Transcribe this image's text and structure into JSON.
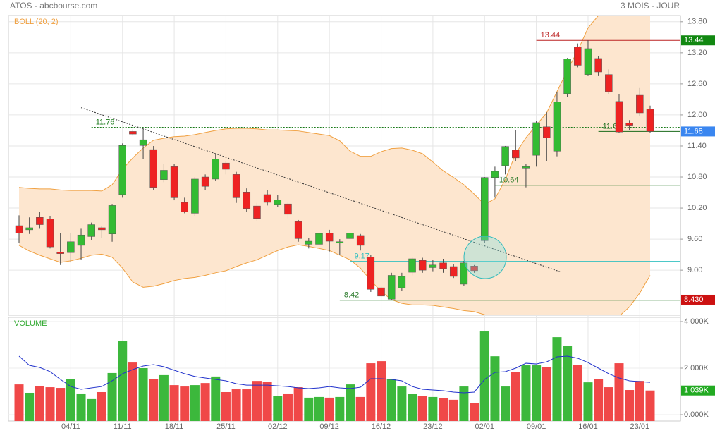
{
  "header": {
    "title": "ATOS - abcbourse.com",
    "period": "3 MOIS - JOUR"
  },
  "chart_data": [
    {
      "type": "candlestick",
      "categories": [
        null,
        null,
        null,
        null,
        null,
        "04/11",
        null,
        null,
        null,
        null,
        "11/11",
        null,
        null,
        null,
        null,
        "18/11",
        null,
        null,
        null,
        null,
        "25/11",
        null,
        null,
        null,
        null,
        "02/12",
        null,
        null,
        null,
        null,
        "09/12",
        null,
        null,
        null,
        null,
        "16/12",
        null,
        null,
        null,
        null,
        "23/12",
        null,
        null,
        null,
        null,
        "02/01",
        null,
        null,
        null,
        null,
        "09/01",
        null,
        null,
        null,
        null,
        "16/01",
        null,
        null,
        null,
        null,
        "23/01",
        null
      ],
      "open": [
        9.86,
        9.78,
        10.02,
        9.99,
        9.35,
        9.34,
        9.48,
        9.65,
        9.82,
        9.7,
        10.46,
        11.68,
        11.41,
        11.33,
        10.75,
        11.0,
        10.31,
        10.1,
        10.8,
        10.76,
        11.07,
        10.85,
        10.51,
        10.24,
        10.46,
        10.27,
        10.28,
        9.94,
        9.5,
        9.5,
        9.72,
        9.54,
        9.61,
        9.67,
        9.25,
        8.66,
        8.44,
        8.66,
        8.96,
        9.19,
        9.05,
        9.14,
        9.07,
        8.73,
        9.08,
        9.57,
        10.79,
        11.02,
        11.32,
        10.98,
        11.22,
        11.77,
        11.3,
        12.41,
        13.31,
        12.78,
        13.09,
        12.78,
        12.26,
        11.84,
        12.38,
        12.11
      ],
      "high": [
        10.06,
        10.02,
        10.12,
        10.05,
        9.72,
        9.72,
        9.8,
        9.92,
        9.86,
        10.28,
        11.45,
        11.72,
        11.72,
        11.4,
        11.05,
        11.05,
        10.4,
        10.8,
        10.85,
        11.25,
        11.1,
        10.9,
        10.58,
        10.3,
        10.55,
        10.45,
        10.32,
        9.97,
        9.62,
        9.78,
        9.78,
        9.6,
        9.88,
        9.7,
        9.3,
        8.7,
        8.95,
        8.95,
        9.25,
        9.24,
        9.2,
        9.22,
        9.12,
        9.18,
        9.1,
        10.8,
        11.0,
        11.4,
        11.7,
        11.05,
        11.88,
        12.05,
        12.45,
        13.1,
        13.38,
        13.44,
        13.13,
        12.88,
        12.4,
        11.9,
        12.52,
        12.18
      ],
      "low": [
        9.52,
        9.7,
        9.8,
        9.42,
        9.1,
        9.15,
        9.2,
        9.58,
        9.62,
        9.55,
        10.4,
        11.6,
        11.15,
        10.55,
        10.7,
        10.35,
        10.1,
        10.05,
        10.55,
        10.72,
        10.85,
        10.3,
        10.12,
        9.95,
        10.25,
        10.22,
        10.0,
        9.55,
        9.42,
        9.35,
        9.36,
        9.3,
        9.55,
        9.38,
        8.58,
        8.42,
        8.42,
        8.6,
        8.9,
        8.95,
        8.98,
        8.95,
        8.85,
        8.7,
        8.95,
        9.52,
        10.4,
        10.85,
        11.1,
        10.6,
        11.0,
        11.1,
        11.2,
        12.35,
        12.92,
        12.75,
        12.75,
        12.4,
        11.65,
        11.7,
        11.98,
        11.65
      ],
      "close": [
        9.72,
        9.82,
        9.88,
        9.45,
        9.32,
        9.55,
        9.68,
        9.88,
        9.78,
        10.25,
        11.41,
        11.63,
        11.52,
        10.6,
        10.93,
        10.4,
        10.13,
        10.76,
        10.62,
        11.15,
        10.95,
        10.4,
        10.19,
        10.0,
        10.31,
        10.36,
        10.08,
        9.61,
        9.56,
        9.71,
        9.56,
        9.55,
        9.72,
        9.48,
        8.63,
        8.5,
        8.9,
        8.88,
        9.22,
        9.0,
        9.1,
        9.03,
        8.88,
        9.14,
        8.99,
        10.79,
        10.91,
        11.39,
        11.17,
        11.0,
        11.85,
        11.56,
        12.25,
        13.08,
        12.96,
        13.28,
        12.83,
        12.45,
        11.67,
        11.8,
        12.04,
        11.68
      ],
      "up_color": "#33bb33",
      "down_color": "#ee2222",
      "ylim": [
        8.13,
        13.92
      ],
      "yticks": [
        {
          "value": 9.0,
          "label": "9.00"
        },
        {
          "value": 9.6,
          "label": "9.60"
        },
        {
          "value": 10.2,
          "label": "10.20"
        },
        {
          "value": 10.8,
          "label": "10.80"
        },
        {
          "value": 11.4,
          "label": "11.40"
        },
        {
          "value": 12.0,
          "label": "12.00"
        },
        {
          "value": 12.6,
          "label": "12.60"
        },
        {
          "value": 13.2,
          "label": "13.20"
        },
        {
          "value": 13.8,
          "label": "13.80"
        }
      ],
      "grid": true,
      "indicator": {
        "name": "BOLL (20, 2)",
        "color": "#f0a040",
        "fill": "#fde6cf",
        "upper": [
          10.6,
          10.58,
          10.57,
          10.57,
          10.55,
          10.54,
          10.54,
          10.54,
          10.53,
          10.65,
          10.95,
          11.17,
          11.36,
          11.51,
          11.55,
          11.58,
          11.59,
          11.62,
          11.66,
          11.7,
          11.73,
          11.74,
          11.74,
          11.73,
          11.71,
          11.71,
          11.7,
          11.69,
          11.66,
          11.63,
          11.6,
          11.5,
          11.3,
          11.2,
          11.2,
          11.29,
          11.35,
          11.36,
          11.32,
          11.25,
          11.09,
          10.92,
          10.79,
          10.65,
          10.47,
          10.27,
          10.38,
          10.75,
          11.25,
          11.56,
          11.8,
          12.04,
          12.45,
          12.86,
          13.24,
          13.68,
          13.92,
          14.1,
          14.2,
          14.25,
          14.25,
          14.2
        ],
        "lower": [
          9.48,
          9.37,
          9.29,
          9.22,
          9.15,
          9.18,
          9.23,
          9.29,
          9.31,
          9.25,
          9.04,
          8.77,
          8.67,
          8.69,
          8.74,
          8.8,
          8.84,
          8.86,
          8.9,
          8.95,
          8.99,
          9.07,
          9.14,
          9.2,
          9.29,
          9.38,
          9.45,
          9.49,
          9.46,
          9.42,
          9.38,
          9.29,
          9.2,
          9.04,
          8.8,
          8.59,
          8.43,
          8.36,
          8.33,
          8.33,
          8.32,
          8.29,
          8.26,
          8.22,
          8.2,
          8.14,
          8.06,
          8.0,
          7.95,
          7.92,
          7.9,
          7.9,
          7.92,
          7.95,
          7.98,
          7.98,
          8.0,
          8.05,
          8.11,
          8.29,
          8.56,
          8.9
        ]
      },
      "levels": [
        {
          "value": 11.76,
          "start": 7,
          "color": "#1a7a1a",
          "dashed": true
        },
        {
          "value": 13.44,
          "start": 50,
          "color": "#bb2222",
          "dashed": false
        },
        {
          "value": 10.64,
          "start": 46,
          "color": "#2a7a2a",
          "dashed": false
        },
        {
          "value": 9.17,
          "start": 32,
          "color": "#33c0c0",
          "dashed": false
        },
        {
          "value": 8.42,
          "start": 31,
          "color": "#2a7a2a",
          "dashed": false
        },
        {
          "value": 11.68,
          "start": 56,
          "color": "#1a6a1a",
          "dashed": false
        }
      ],
      "trendline": {
        "x": [
          6,
          52.3
        ],
        "y": [
          12.14,
          8.97
        ],
        "color": "#333333"
      },
      "badges": [
        {
          "value": 13.44,
          "color": "#118811"
        },
        {
          "value": 11.68,
          "color": "#3a86f0"
        },
        {
          "value": 8.43,
          "label": "8.430",
          "color": "#cc1111"
        }
      ]
    },
    {
      "type": "bar",
      "title": "VOLUME",
      "values": [
        1300,
        940,
        1240,
        1180,
        1150,
        1545,
        910,
        670,
        970,
        1790,
        3180,
        2240,
        2000,
        1520,
        1700,
        1270,
        1210,
        1270,
        1360,
        1640,
        970,
        1090,
        1090,
        1450,
        1420,
        790,
        910,
        1180,
        730,
        760,
        730,
        760,
        1300,
        760,
        2210,
        2300,
        1520,
        1210,
        880,
        790,
        760,
        700,
        640,
        1210,
        485,
        3575,
        2510,
        1210,
        1820,
        2120,
        2120,
        2060,
        3330,
        2940,
        2150,
        1390,
        1545,
        1180,
        2210,
        1060,
        1450,
        1039
      ],
      "up_color": "#3cb83c",
      "down_color": "#f04848",
      "average": {
        "color": "#2233cc",
        "values": [
          2515,
          2120,
          2030,
          1850,
          1515,
          1210,
          1090,
          1150,
          1210,
          1455,
          1760,
          1940,
          2090,
          2150,
          2060,
          1910,
          1760,
          1640,
          1575,
          1515,
          1455,
          1330,
          1270,
          1270,
          1270,
          1240,
          1210,
          1150,
          1120,
          1150,
          1210,
          1150,
          1120,
          1180,
          1545,
          1545,
          1515,
          1455,
          1210,
          1090,
          1060,
          1030,
          970,
          940,
          970,
          1515,
          1820,
          1850,
          2000,
          2210,
          2180,
          2270,
          2485,
          2515,
          2425,
          2240,
          2000,
          1760,
          1575,
          1455,
          1420,
          1390
        ]
      },
      "ylim": [
        0,
        4000
      ],
      "yticks": [
        {
          "value": 0,
          "label": "0.000K"
        },
        {
          "value": 2000,
          "label": "2 000K"
        },
        {
          "value": 4000,
          "label": "4 000K"
        }
      ],
      "badge": {
        "value": 1039,
        "label": "1 039K",
        "color": "#22aa22"
      }
    }
  ]
}
